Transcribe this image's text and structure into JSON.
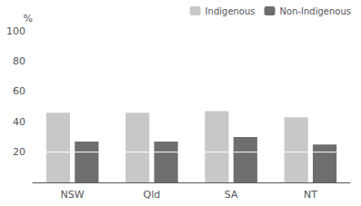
{
  "chart_data": {
    "type": "bar",
    "categories": [
      "NSW",
      "Qld",
      "SA",
      "NT"
    ],
    "series": [
      {
        "name": "Indigenous",
        "color": "#c8c8c8",
        "values": [
          46,
          46,
          47,
          43
        ],
        "lower": [
          20,
          20,
          20,
          20
        ]
      },
      {
        "name": "Non-Indigenous",
        "color": "#6e6e6e",
        "values": [
          27,
          27,
          30,
          25
        ],
        "lower": [
          20,
          20,
          20,
          20
        ]
      }
    ],
    "ylabel": "%",
    "ylim": [
      0,
      100
    ],
    "yticks": [
      20,
      40,
      60,
      80,
      100
    ],
    "grid": false,
    "legend": "upper right"
  }
}
